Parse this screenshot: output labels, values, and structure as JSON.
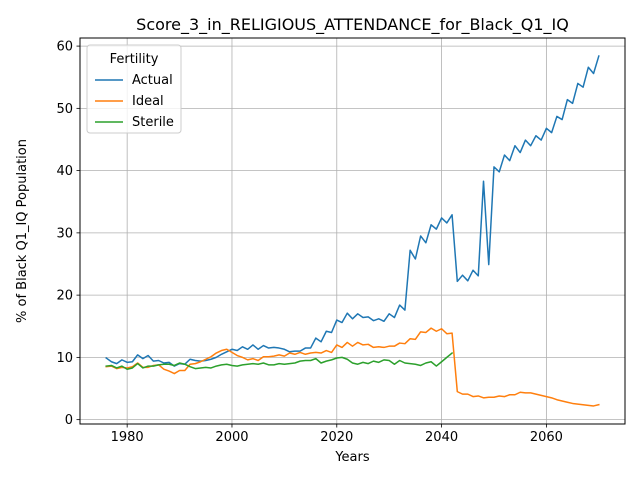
{
  "chart_data": {
    "type": "line",
    "title": "Score_3_in_RELIGIOUS_ATTENDANCE_for_Black_Q1_IQ",
    "xlabel": "Years",
    "ylabel": "% of Black Q1_IQ Population",
    "xlim": [
      1971,
      2075
    ],
    "ylim": [
      -0.7,
      61.3
    ],
    "xticks": [
      1980,
      2000,
      2020,
      2040,
      2060
    ],
    "yticks": [
      0,
      10,
      20,
      30,
      40,
      50,
      60
    ],
    "grid": true,
    "legend": {
      "title": "Fertility",
      "placement": "top-left"
    },
    "x": [
      1976,
      1977,
      1978,
      1979,
      1980,
      1981,
      1982,
      1983,
      1984,
      1985,
      1986,
      1987,
      1988,
      1989,
      1990,
      1991,
      1992,
      1993,
      1994,
      1995,
      1996,
      1997,
      1998,
      1999,
      2000,
      2001,
      2002,
      2003,
      2004,
      2005,
      2006,
      2007,
      2008,
      2009,
      2010,
      2011,
      2012,
      2013,
      2014,
      2015,
      2016,
      2017,
      2018,
      2019,
      2020,
      2021,
      2022,
      2023,
      2024,
      2025,
      2026,
      2027,
      2028,
      2029,
      2030,
      2031,
      2032,
      2033,
      2034,
      2035,
      2036,
      2037,
      2038,
      2039,
      2040,
      2041,
      2042,
      2043,
      2044,
      2045,
      2046,
      2047,
      2048,
      2049,
      2050,
      2051,
      2052,
      2053,
      2054,
      2055,
      2056,
      2057,
      2058,
      2059,
      2060,
      2061,
      2062,
      2063,
      2064,
      2065,
      2066,
      2067,
      2068,
      2069,
      2070
    ],
    "series": [
      {
        "name": "Actual",
        "color": "#1f77b4",
        "values": [
          9.9,
          9.3,
          9.0,
          9.6,
          9.2,
          9.3,
          10.4,
          9.8,
          10.3,
          9.4,
          9.5,
          9.1,
          9.2,
          8.6,
          9.0,
          8.9,
          9.7,
          9.5,
          9.4,
          9.5,
          9.7,
          10.0,
          10.5,
          10.9,
          11.3,
          11.1,
          11.7,
          11.3,
          12.0,
          11.3,
          11.9,
          11.5,
          11.6,
          11.5,
          11.3,
          10.9,
          11.0,
          11.0,
          11.5,
          11.5,
          13.1,
          12.5,
          14.2,
          14.0,
          16.0,
          15.6,
          17.1,
          16.2,
          17.0,
          16.4,
          16.5,
          15.9,
          16.2,
          15.8,
          17.0,
          16.4,
          18.4,
          17.6,
          27.2,
          25.8,
          29.5,
          28.4,
          31.3,
          30.6,
          32.4,
          31.6,
          32.9,
          22.2,
          23.2,
          22.3,
          24.0,
          23.1,
          38.3,
          24.9,
          40.6,
          39.8,
          42.5,
          41.6,
          44.0,
          42.9,
          44.9,
          44.0,
          45.6,
          44.9,
          46.8,
          46.1,
          48.7,
          48.2,
          51.4,
          50.8,
          54.0,
          53.4,
          56.6,
          55.6,
          58.4
        ]
      },
      {
        "name": "Ideal",
        "color": "#ff7f0e",
        "values": [
          8.5,
          8.6,
          8.2,
          8.4,
          8.3,
          8.5,
          9.1,
          8.4,
          8.4,
          8.7,
          8.8,
          8.1,
          7.8,
          7.4,
          7.9,
          7.9,
          8.9,
          9.0,
          9.3,
          9.7,
          10.1,
          10.7,
          11.1,
          11.3,
          10.8,
          10.3,
          10.0,
          9.6,
          9.8,
          9.5,
          10.1,
          10.1,
          10.2,
          10.4,
          10.2,
          10.7,
          10.5,
          10.8,
          10.5,
          10.7,
          10.8,
          10.7,
          11.1,
          10.8,
          12.0,
          11.6,
          12.4,
          11.8,
          12.4,
          12.0,
          12.1,
          11.6,
          11.7,
          11.6,
          11.8,
          11.8,
          12.3,
          12.2,
          13.0,
          12.9,
          14.1,
          14.0,
          14.7,
          14.2,
          14.6,
          13.8,
          13.9,
          4.5,
          4.1,
          4.1,
          3.7,
          3.8,
          3.5,
          3.6,
          3.6,
          3.8,
          3.7,
          4.0,
          4.0,
          4.4,
          4.3,
          4.3,
          4.1,
          3.9,
          3.7,
          3.5,
          3.2,
          3.0,
          2.8,
          2.6,
          2.5,
          2.4,
          2.3,
          2.2,
          2.4
        ]
      },
      {
        "name": "Sterile",
        "color": "#2ca02c",
        "values": [
          8.6,
          8.7,
          8.3,
          8.6,
          8.1,
          8.3,
          9.0,
          8.3,
          8.6,
          8.6,
          8.8,
          8.9,
          8.9,
          8.7,
          9.1,
          8.9,
          8.5,
          8.2,
          8.3,
          8.4,
          8.3,
          8.6,
          8.8,
          8.9,
          8.7,
          8.6,
          8.8,
          8.9,
          9.0,
          8.9,
          9.1,
          8.8,
          8.8,
          9.0,
          8.9,
          9.0,
          9.1,
          9.4,
          9.5,
          9.5,
          9.8,
          9.1,
          9.4,
          9.6,
          9.9,
          10.0,
          9.7,
          9.1,
          8.9,
          9.2,
          9.0,
          9.4,
          9.2,
          9.6,
          9.5,
          8.9,
          9.5,
          9.1,
          9.0,
          8.9,
          8.7,
          9.1,
          9.3,
          8.6,
          9.3,
          10.0,
          10.7,
          null,
          null,
          null,
          null,
          null,
          null,
          null,
          null,
          null,
          null,
          null,
          null,
          null,
          null,
          null,
          null,
          null,
          null,
          null,
          null,
          null,
          null,
          null,
          null,
          null,
          null,
          null,
          null
        ]
      }
    ]
  }
}
